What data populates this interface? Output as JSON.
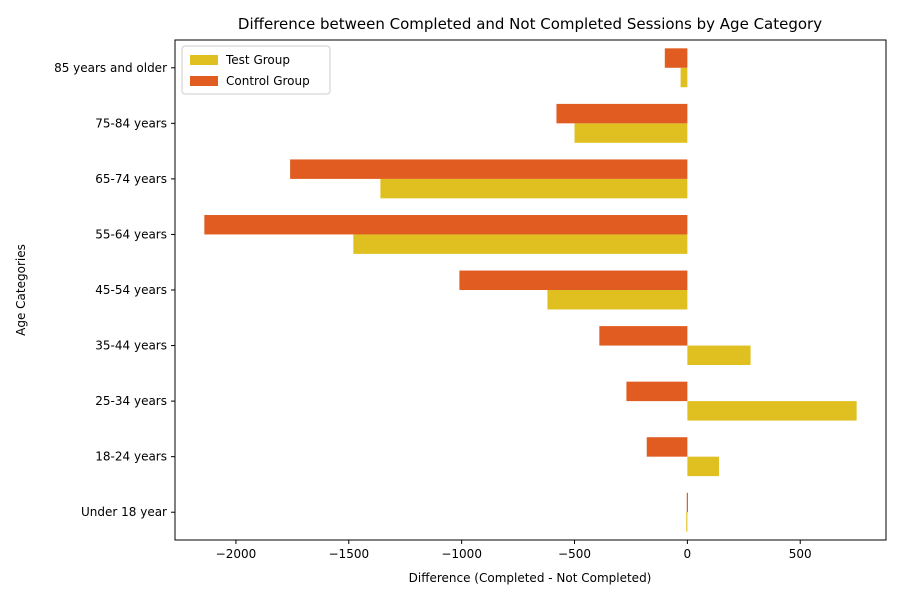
{
  "chart_data": {
    "type": "bar",
    "orientation": "horizontal",
    "title": "Difference between Completed and Not Completed Sessions by Age Category",
    "xlabel": "Difference (Completed - Not Completed)",
    "ylabel": "Age Categories",
    "xlim": [
      -2270,
      880
    ],
    "xticks": [
      -2000,
      -1500,
      -1000,
      -500,
      0,
      500
    ],
    "xtick_labels": [
      "−2000",
      "−1500",
      "−1000",
      "−500",
      "0",
      "500"
    ],
    "categories": [
      "Under 18 year",
      "18-24 years",
      "25-34 years",
      "35-44 years",
      "45-54 years",
      "55-64 years",
      "65-74 years",
      "75-84 years",
      "85 years and older"
    ],
    "series": [
      {
        "name": "Test Group",
        "color": "#e0c020",
        "values": [
          -5,
          140,
          750,
          280,
          -620,
          -1480,
          -1360,
          -500,
          -30
        ]
      },
      {
        "name": "Control Group",
        "color": "#e05c20",
        "values": [
          0,
          -180,
          -270,
          -390,
          -1010,
          -2140,
          -1760,
          -580,
          -100
        ]
      }
    ],
    "legend_position": "upper left",
    "grid": false
  }
}
